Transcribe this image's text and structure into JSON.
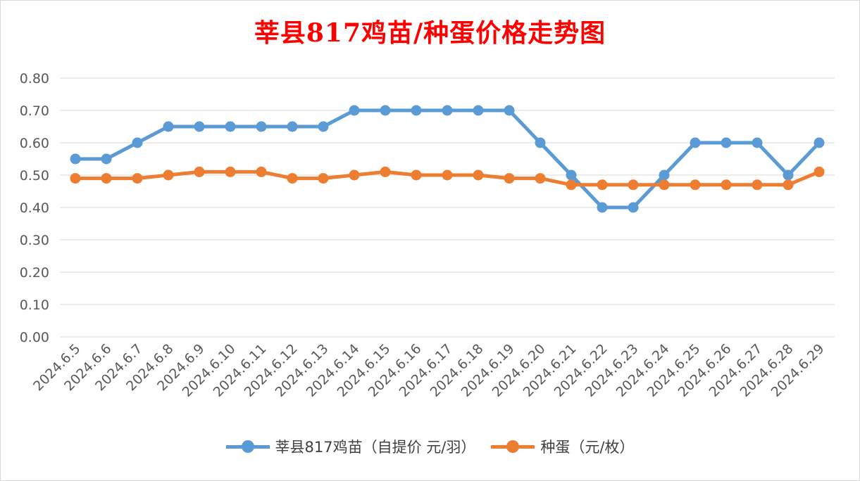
{
  "chart_data": {
    "type": "line",
    "title": "莘县817鸡苗/种蛋价格走势图",
    "categories": [
      "2024.6.5",
      "2024.6.6",
      "2024.6.7",
      "2024.6.8",
      "2024.6.9",
      "2024.6.10",
      "2024.6.11",
      "2024.6.12",
      "2024.6.13",
      "2024.6.14",
      "2024.6.15",
      "2024.6.16",
      "2024.6.17",
      "2024.6.18",
      "2024.6.19",
      "2024.6.20",
      "2024.6.21",
      "2024.6.22",
      "2024.6.23",
      "2024.6.24",
      "2024.6.25",
      "2024.6.26",
      "2024.6.27",
      "2024.6.28",
      "2024.6.29"
    ],
    "ylim": [
      0,
      0.8
    ],
    "yticks": [
      "0.00",
      "0.10",
      "0.20",
      "0.30",
      "0.40",
      "0.50",
      "0.60",
      "0.70",
      "0.80"
    ],
    "grid": true,
    "legend_position": "bottom",
    "series": [
      {
        "name": "莘县817鸡苗（自提价 元/羽）",
        "color": "#5b9bd5",
        "values": [
          0.55,
          0.55,
          0.6,
          0.65,
          0.65,
          0.65,
          0.65,
          0.65,
          0.65,
          0.7,
          0.7,
          0.7,
          0.7,
          0.7,
          0.7,
          0.6,
          0.5,
          0.4,
          0.4,
          0.5,
          0.6,
          0.6,
          0.6,
          0.5,
          0.6
        ]
      },
      {
        "name": "种蛋（元/枚）",
        "color": "#ed7d31",
        "values": [
          0.49,
          0.49,
          0.49,
          0.5,
          0.51,
          0.51,
          0.51,
          0.49,
          0.49,
          0.5,
          0.51,
          0.5,
          0.5,
          0.5,
          0.49,
          0.49,
          0.47,
          0.47,
          0.47,
          0.47,
          0.47,
          0.47,
          0.47,
          0.47,
          0.51
        ]
      }
    ]
  }
}
